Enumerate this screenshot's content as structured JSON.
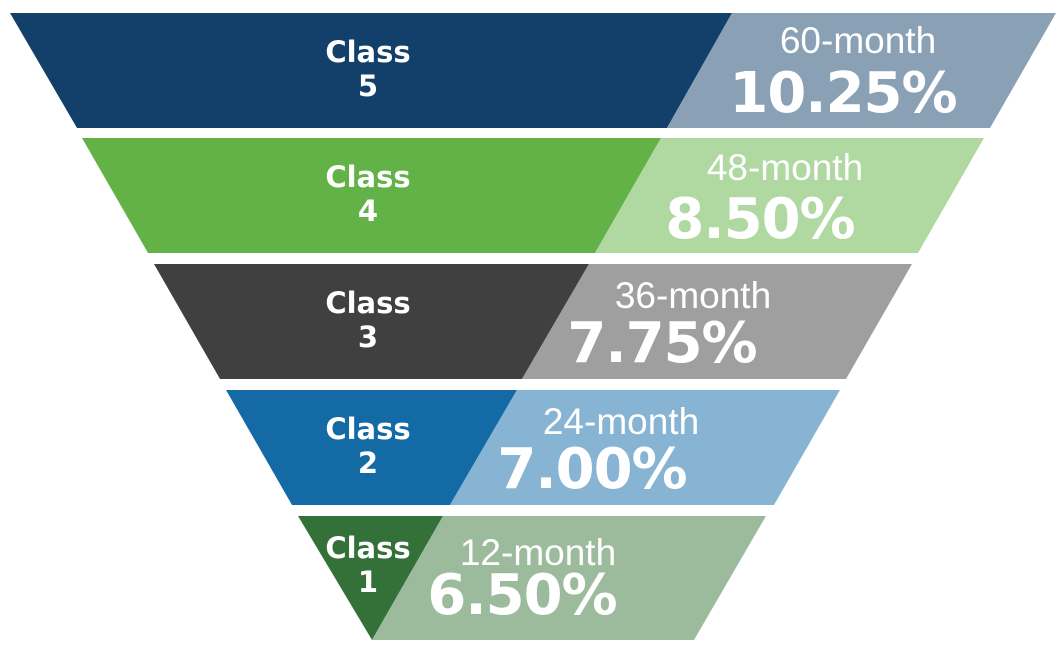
{
  "funnel": {
    "tiers": [
      {
        "class_word": "Class",
        "class_num": "5",
        "term": "60-month",
        "rate": "10.25%",
        "dark_color": "#12406a",
        "light_color": "#8aa0b5"
      },
      {
        "class_word": "Class",
        "class_num": "4",
        "term": "48-month",
        "rate": "8.50%",
        "dark_color": "#63b247",
        "light_color": "#b0d8a1"
      },
      {
        "class_word": "Class",
        "class_num": "3",
        "term": "36-month",
        "rate": "7.75%",
        "dark_color": "#404040",
        "light_color": "#9f9f9f"
      },
      {
        "class_word": "Class",
        "class_num": "2",
        "term": "24-month",
        "rate": "7.00%",
        "dark_color": "#146aa5",
        "light_color": "#87b4d3"
      },
      {
        "class_word": "Class",
        "class_num": "1",
        "term": "12-month",
        "rate": "6.50%",
        "dark_color": "#337138",
        "light_color": "#9cbb9d"
      }
    ]
  }
}
